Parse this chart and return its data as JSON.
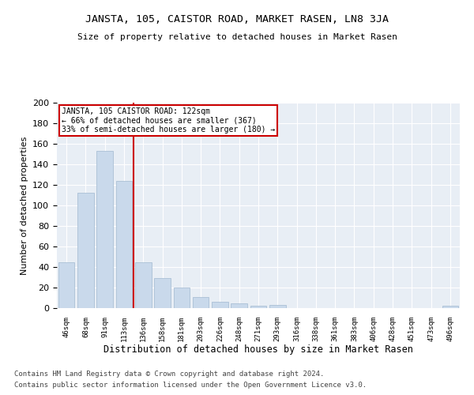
{
  "title": "JANSTA, 105, CAISTOR ROAD, MARKET RASEN, LN8 3JA",
  "subtitle": "Size of property relative to detached houses in Market Rasen",
  "xlabel": "Distribution of detached houses by size in Market Rasen",
  "ylabel": "Number of detached properties",
  "bar_color": "#c9d9eb",
  "bar_edge_color": "#a0b8d0",
  "bg_color": "#e8eef5",
  "grid_color": "#ffffff",
  "categories": [
    "46sqm",
    "68sqm",
    "91sqm",
    "113sqm",
    "136sqm",
    "158sqm",
    "181sqm",
    "203sqm",
    "226sqm",
    "248sqm",
    "271sqm",
    "293sqm",
    "316sqm",
    "338sqm",
    "361sqm",
    "383sqm",
    "406sqm",
    "428sqm",
    "451sqm",
    "473sqm",
    "496sqm"
  ],
  "values": [
    45,
    112,
    153,
    124,
    45,
    29,
    20,
    11,
    6,
    5,
    2,
    3,
    0,
    0,
    0,
    0,
    0,
    0,
    0,
    0,
    2
  ],
  "vline_x": 3.5,
  "vline_color": "#cc0000",
  "annotation_title": "JANSTA, 105 CAISTOR ROAD: 122sqm",
  "annotation_line1": "← 66% of detached houses are smaller (367)",
  "annotation_line2": "33% of semi-detached houses are larger (180) →",
  "annotation_box_color": "#cc0000",
  "ylim": [
    0,
    200
  ],
  "yticks": [
    0,
    20,
    40,
    60,
    80,
    100,
    120,
    140,
    160,
    180,
    200
  ],
  "footer1": "Contains HM Land Registry data © Crown copyright and database right 2024.",
  "footer2": "Contains public sector information licensed under the Open Government Licence v3.0."
}
